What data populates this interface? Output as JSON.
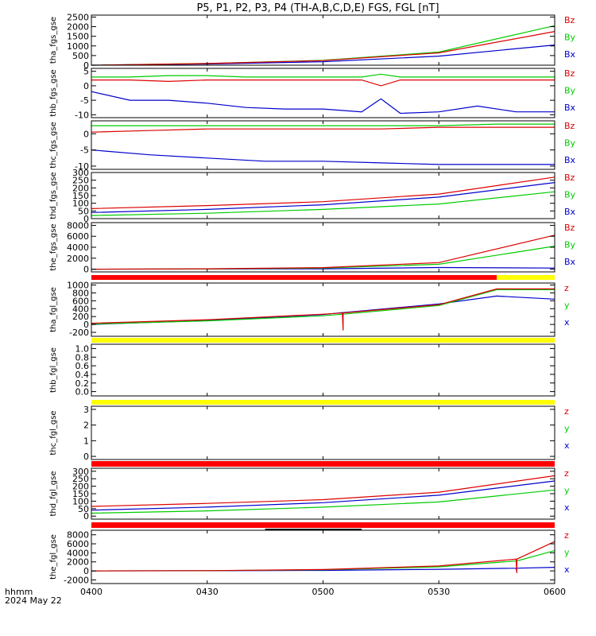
{
  "title": "P5, P1, P2, P3, P4 (TH-A,B,C,D,E) FGS, FGL [nT]",
  "footer": {
    "line1": "hhmm",
    "line2": "2024 May 22"
  },
  "colors": {
    "x": "#0000cc",
    "y": "#00cc00",
    "z": "#dd0000",
    "yellow": "#ffff00",
    "red": "#ff0000",
    "black": "#000000"
  },
  "chart_data": [
    {
      "type": "line",
      "ylabel": "tha_fgs_gse",
      "ylim": [
        0,
        2600
      ],
      "yticks": [
        0,
        500,
        1000,
        1500,
        2000,
        2500
      ],
      "legend": [
        "Bz",
        "By",
        "Bx"
      ],
      "x": [
        "04:00",
        "04:30",
        "05:00",
        "05:30",
        "06:00"
      ],
      "series": [
        {
          "name": "Bx",
          "color": "x",
          "values": [
            0,
            60,
            180,
            470,
            1050
          ]
        },
        {
          "name": "By",
          "color": "y",
          "values": [
            0,
            90,
            250,
            680,
            2050
          ]
        },
        {
          "name": "Bz",
          "color": "z",
          "values": [
            0,
            85,
            240,
            640,
            1750
          ]
        }
      ]
    },
    {
      "type": "line",
      "ylabel": "thb_fgs_gse",
      "ylim": [
        -11,
        6
      ],
      "yticks": [
        -10,
        -5,
        0,
        5
      ],
      "legend": [
        "Bz",
        "By",
        "Bx"
      ],
      "x": [
        "04:00",
        "04:10",
        "04:20",
        "04:30",
        "04:40",
        "04:50",
        "05:00",
        "05:10",
        "05:15",
        "05:20",
        "05:30",
        "05:40",
        "05:50",
        "06:00"
      ],
      "series": [
        {
          "name": "Bx",
          "color": "x",
          "values": [
            -2,
            -5,
            -5,
            -6,
            -7.5,
            -8,
            -8,
            -9,
            -4.5,
            -9.5,
            -9,
            -7,
            -9,
            -9
          ]
        },
        {
          "name": "By",
          "color": "y",
          "values": [
            3,
            3,
            3.5,
            3.5,
            3,
            3,
            3,
            3,
            4,
            3,
            3,
            3,
            3,
            3
          ]
        },
        {
          "name": "Bz",
          "color": "z",
          "values": [
            2,
            2,
            1.5,
            2,
            2,
            2,
            2,
            2,
            0,
            2,
            2,
            2,
            2,
            2
          ]
        }
      ]
    },
    {
      "type": "line",
      "ylabel": "thc_fgs_gse",
      "ylim": [
        -11,
        4
      ],
      "yticks": [
        -10,
        -5,
        0
      ],
      "legend": [
        "Bz",
        "By",
        "Bx"
      ],
      "x": [
        "04:00",
        "04:15",
        "04:30",
        "04:45",
        "05:00",
        "05:15",
        "05:30",
        "05:45",
        "06:00"
      ],
      "series": [
        {
          "name": "Bx",
          "color": "x",
          "values": [
            -5,
            -6.5,
            -7.5,
            -8.5,
            -8.5,
            -9,
            -9.5,
            -9.5,
            -9.5
          ]
        },
        {
          "name": "By",
          "color": "y",
          "values": [
            2.5,
            2.5,
            2.5,
            2.5,
            2.5,
            2.5,
            2.5,
            3,
            3
          ]
        },
        {
          "name": "Bz",
          "color": "z",
          "values": [
            0.5,
            1,
            1.5,
            1.5,
            1.5,
            1.5,
            2,
            2,
            2
          ]
        }
      ]
    },
    {
      "type": "line",
      "ylabel": "thd_fgs_gse",
      "ylim": [
        0,
        300
      ],
      "yticks": [
        0,
        50,
        100,
        150,
        200,
        250,
        300
      ],
      "legend": [
        "Bz",
        "By",
        "Bx"
      ],
      "x": [
        "04:00",
        "04:30",
        "05:00",
        "05:30",
        "06:00"
      ],
      "series": [
        {
          "name": "Bx",
          "color": "x",
          "values": [
            40,
            60,
            90,
            140,
            235
          ]
        },
        {
          "name": "By",
          "color": "y",
          "values": [
            20,
            35,
            60,
            95,
            175
          ]
        },
        {
          "name": "Bz",
          "color": "z",
          "values": [
            65,
            85,
            110,
            160,
            270
          ]
        }
      ]
    },
    {
      "type": "line",
      "ylabel": "the_fgs_gse",
      "ylim": [
        -500,
        8500
      ],
      "yticks": [
        0,
        2000,
        4000,
        6000,
        8000
      ],
      "legend": [
        "Bz",
        "By",
        "Bx"
      ],
      "x": [
        "04:00",
        "04:30",
        "05:00",
        "05:30",
        "06:00"
      ],
      "series": [
        {
          "name": "Bx",
          "color": "x",
          "values": [
            0,
            20,
            60,
            300,
            200
          ]
        },
        {
          "name": "By",
          "color": "y",
          "values": [
            0,
            40,
            200,
            900,
            4200
          ]
        },
        {
          "name": "Bz",
          "color": "z",
          "values": [
            0,
            60,
            280,
            1200,
            6200
          ]
        }
      ]
    },
    {
      "type": "line",
      "ylabel": "tha_fgl_gse",
      "ylim": [
        -300,
        1050
      ],
      "yticks": [
        -200,
        0,
        200,
        400,
        600,
        800,
        1000
      ],
      "legend": [
        "z",
        "y",
        "x"
      ],
      "x": [
        "04:00",
        "04:30",
        "05:00",
        "05:05",
        "05:05",
        "05:05",
        "05:30",
        "05:45",
        "06:00"
      ],
      "series": [
        {
          "name": "x",
          "color": "x",
          "values": [
            0,
            100,
            250,
            300,
            300,
            300,
            520,
            720,
            640
          ]
        },
        {
          "name": "y",
          "color": "y",
          "values": [
            10,
            90,
            220,
            260,
            260,
            260,
            480,
            880,
            880
          ]
        },
        {
          "name": "z",
          "color": "z",
          "values": [
            30,
            120,
            260,
            290,
            -150,
            290,
            500,
            900,
            900
          ]
        }
      ]
    },
    {
      "type": "line",
      "ylabel": "thb_fgl_gse",
      "ylim": [
        -0.1,
        1.1
      ],
      "yticks": [
        0,
        0.2,
        0.4,
        0.6,
        0.8,
        1.0
      ],
      "ytick_labels": [
        "0.0",
        "0.2",
        "0.4",
        "0.6",
        "0.8",
        "1.0"
      ],
      "legend": [],
      "x": [],
      "series": []
    },
    {
      "type": "line",
      "ylabel": "thc_fgl_gse",
      "ylim": [
        -0.2,
        3.2
      ],
      "yticks": [
        0,
        1,
        2,
        3
      ],
      "legend": [
        "z",
        "y",
        "x"
      ],
      "x": [],
      "series": []
    },
    {
      "type": "line",
      "ylabel": "thd_fgl_gse",
      "ylim": [
        -20,
        320
      ],
      "yticks": [
        0,
        50,
        100,
        150,
        200,
        250,
        300
      ],
      "legend": [
        "z",
        "y",
        "x"
      ],
      "x": [
        "04:00",
        "04:30",
        "05:00",
        "05:30",
        "06:00"
      ],
      "series": [
        {
          "name": "x",
          "color": "x",
          "values": [
            40,
            60,
            90,
            140,
            235
          ]
        },
        {
          "name": "y",
          "color": "y",
          "values": [
            20,
            35,
            60,
            95,
            175
          ]
        },
        {
          "name": "z",
          "color": "z",
          "values": [
            65,
            85,
            110,
            160,
            270
          ]
        }
      ]
    },
    {
      "type": "line",
      "ylabel": "the_fgl_gse",
      "ylim": [
        -2800,
        9000
      ],
      "yticks": [
        -2000,
        0,
        2000,
        4000,
        6000,
        8000
      ],
      "legend": [
        "z",
        "y",
        "x"
      ],
      "x": [
        "04:00",
        "04:30",
        "05:00",
        "05:30",
        "05:50",
        "05:50",
        "05:50",
        "06:00"
      ],
      "series": [
        {
          "name": "x",
          "color": "x",
          "values": [
            0,
            30,
            100,
            350,
            600,
            -100,
            600,
            800
          ]
        },
        {
          "name": "y",
          "color": "y",
          "values": [
            0,
            50,
            250,
            900,
            2200,
            2200,
            2200,
            4500
          ]
        },
        {
          "name": "z",
          "color": "z",
          "values": [
            0,
            60,
            300,
            1100,
            2600,
            -500,
            2600,
            6500
          ]
        }
      ]
    }
  ],
  "status_bars": [
    {
      "segments": [
        {
          "from": "04:00",
          "to": "05:45",
          "color": "red"
        },
        {
          "from": "05:45",
          "to": "06:00",
          "color": "yellow"
        }
      ]
    },
    {
      "segments": [
        {
          "from": "04:00",
          "to": "06:00",
          "color": "yellow"
        }
      ]
    },
    {
      "segments": [
        {
          "from": "04:00",
          "to": "06:00",
          "color": "yellow"
        }
      ]
    },
    {
      "segments": [
        {
          "from": "04:00",
          "to": "06:00",
          "color": "red"
        }
      ]
    },
    {
      "segments": [
        {
          "from": "04:00",
          "to": "06:00",
          "color": "red"
        }
      ]
    }
  ],
  "small_bar": {
    "from": "04:45",
    "to": "05:10",
    "color": "black"
  },
  "time_axis": {
    "start": "04:00",
    "end": "06:00",
    "ticks": [
      "04:00",
      "04:30",
      "05:00",
      "05:30",
      "06:00"
    ],
    "tick_labels": [
      "0400",
      "0430",
      "0500",
      "0530",
      "0600"
    ]
  }
}
